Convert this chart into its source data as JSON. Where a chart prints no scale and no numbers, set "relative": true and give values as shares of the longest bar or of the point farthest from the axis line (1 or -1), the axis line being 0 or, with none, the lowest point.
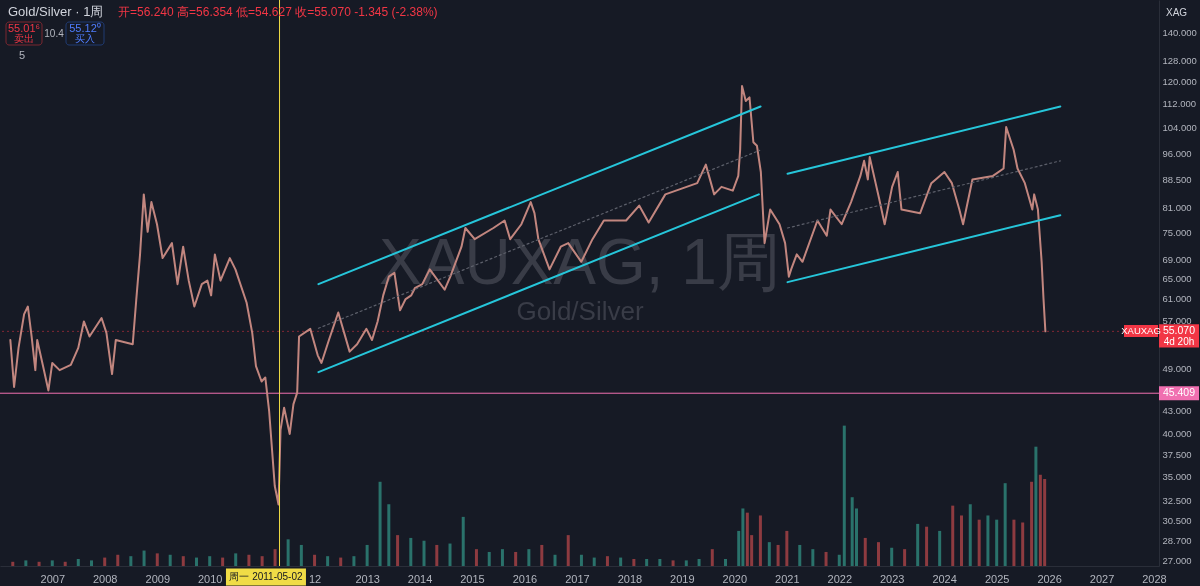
{
  "chart_data": [
    {
      "type": "line",
      "title": "Gold/Silver · 1周",
      "annotations": [
        "开=56.240 高=56.354 低=54.627 收=55.070 -1.345 (-2.38%)",
        "55.01⁶",
        "卖出",
        "10.4",
        "55.12⁰",
        "买入",
        "5",
        "XAUXAG, 1周",
        "Gold/Silver",
        "XAG",
        "XAUXAG",
        "4d 20h"
      ],
      "log": "y",
      "grid": false,
      "xlim": [
        "2006-01-02",
        "2028-02-05"
      ],
      "xticks": [
        "2007",
        "2008",
        "2009",
        "2010",
        {
          "value": "2012",
          "label": "12"
        },
        "2013",
        "2014",
        "2015",
        "2016",
        "2017",
        "2018",
        "2019",
        "2020",
        "2021",
        "2022",
        "2023",
        "2024",
        "2025",
        "2026",
        "2027",
        "2028"
      ],
      "ylim": [
        26.5,
        154.7
      ],
      "yticks": [
        {
          "value": 140,
          "label": "140.000"
        },
        {
          "value": 128,
          "label": "128.000"
        },
        {
          "value": 120,
          "label": "120.000"
        },
        {
          "value": 112,
          "label": "112.000"
        },
        {
          "value": 104,
          "label": "104.000"
        },
        {
          "value": 96,
          "label": "96.000"
        },
        {
          "value": 88.5,
          "label": "88.500"
        },
        {
          "value": 81,
          "label": "81.000"
        },
        {
          "value": 75,
          "label": "75.000"
        },
        {
          "value": 69,
          "label": "69.000"
        },
        {
          "value": 65,
          "label": "65.000"
        },
        {
          "value": 61,
          "label": "61.000"
        },
        {
          "value": 57,
          "label": "57.000"
        },
        {
          "value": 49,
          "label": "49.000"
        },
        {
          "value": 43,
          "label": "43.000"
        },
        {
          "value": 40,
          "label": "40.000"
        },
        {
          "value": 37.5,
          "label": "37.500"
        },
        {
          "value": 35,
          "label": "35.000"
        },
        {
          "value": 32.5,
          "label": "32.500"
        },
        {
          "value": 30.5,
          "label": "30.500"
        },
        {
          "value": 28.7,
          "label": "28.700"
        },
        {
          "value": 27,
          "label": "27.000"
        }
      ],
      "ref_lines": [
        {
          "axis": "y",
          "value": 45.409,
          "label": "45.409",
          "color": "#f06fb0"
        },
        {
          "axis": "y",
          "value": 55.07,
          "label": "55.070",
          "color": "#f23645",
          "line_style": "dotted"
        },
        {
          "axis": "x",
          "value": "2011-05-02",
          "label": "周一 2011-05-02",
          "color": "#f0dc46"
        }
      ],
      "series": [
        {
          "color": "#c2867f",
          "line_style": "solid",
          "x": [
            "2006-03-15",
            "2006-04-10",
            "2006-05-11",
            "2006-06-19",
            "2006-07-15",
            "2006-08-10",
            "2006-09-05",
            "2006-09-18",
            "2006-10-27",
            "2006-12-05",
            "2007-01-01",
            "2007-02-21",
            "2007-05-10",
            "2007-07-01",
            "2007-08-09",
            "2007-09-17",
            "2007-12-10",
            "2008-01-13",
            "2008-02-21",
            "2008-03-18",
            "2008-07-14",
            "2008-08-08",
            "2008-09-03",
            "2008-09-29",
            "2008-10-26",
            "2008-11-21",
            "2008-12-30",
            "2009-02-07",
            "2009-04-13",
            "2009-05-22",
            "2009-06-30",
            "2009-08-08",
            "2009-09-16",
            "2009-11-07",
            "2009-12-16",
            "2010-01-11",
            "2010-02-06",
            "2010-03-17",
            "2010-05-21",
            "2010-06-29",
            "2010-09-15",
            "2010-10-24",
            "2010-11-19",
            "2010-12-28",
            "2011-01-23",
            "2011-02-19",
            "2011-03-30",
            "2011-04-25",
            "2011-05-09",
            "2011-06-03",
            "2011-07-12",
            "2011-08-07",
            "2011-09-02",
            "2011-09-15",
            "2011-12-02",
            "2012-01-23",
            "2012-02-18",
            "2012-04-10",
            "2012-06-14",
            "2012-09-01",
            "2012-10-23",
            "2012-12-27",
            "2013-02-04",
            "2013-03-15",
            "2013-04-23",
            "2013-06-01",
            "2013-07-10",
            "2013-08-18",
            "2013-09-26",
            "2013-11-04",
            "2013-11-29",
            "2014-01-20",
            "2014-03-13",
            "2014-06-25",
            "2014-08-03",
            "2014-10-20",
            "2014-11-16",
            "2015-01-20",
            "2015-05-30",
            "2015-08-16",
            "2015-09-24",
            "2015-12-11",
            "2016-02-14",
            "2016-03-11",
            "2016-04-07",
            "2016-06-24",
            "2016-09-10",
            "2016-11-01",
            "2017-01-31",
            "2017-04-19",
            "2017-07-07",
            "2017-12-09",
            "2018-03-10",
            "2018-05-15",
            "2018-09-08",
            "2019-04-18",
            "2019-06-17",
            "2019-08-14",
            "2019-10-04",
            "2019-12-22",
            "2020-01-29",
            "2020-02-11",
            "2020-02-24",
            "2020-03-21",
            "2020-04-16",
            "2020-05-13",
            "2020-06-07",
            "2020-07-04",
            "2020-07-30",
            "2020-09-07",
            "2020-11-11",
            "2020-12-20",
            "2021-01-15",
            "2021-01-31",
            "2021-03-11",
            "2021-04-20",
            "2021-08-02",
            "2021-10-06",
            "2021-11-01",
            "2022-01-18",
            "2022-03-24",
            "2022-05-28",
            "2022-06-23",
            "2022-07-19",
            "2022-08-01",
            "2022-10-05",
            "2022-11-13",
            "2023-01-04",
            "2023-02-12",
            "2023-03-10",
            "2023-07-18",
            "2023-10-04",
            "2024-01-03",
            "2024-02-24",
            "2024-04-16",
            "2024-05-12",
            "2024-07-16",
            "2024-12-06",
            "2025-02-18",
            "2025-03-08",
            "2025-04-29",
            "2025-05-26",
            "2025-07-16",
            "2025-09-06",
            "2025-09-19",
            "2025-10-15",
            "2025-11-10",
            "2025-11-23",
            "2025-12-06"
          ],
          "values": [
            53.6,
            46.3,
            52.3,
            58.1,
            59.5,
            54.2,
            48.8,
            53.6,
            49.6,
            45.8,
            49.9,
            48.8,
            49.6,
            52.3,
            56.8,
            54.2,
            57.4,
            54.8,
            48.2,
            53.6,
            52.9,
            60.9,
            70.0,
            84.4,
            75.1,
            82.4,
            76.9,
            69.2,
            72.5,
            63.8,
            71.7,
            64.5,
            59.5,
            63.8,
            64.5,
            61.6,
            70.0,
            64.5,
            69.2,
            66.8,
            60.2,
            54.8,
            49.4,
            47.1,
            47.7,
            42.9,
            34.0,
            32.1,
            40.5,
            43.4,
            40.0,
            43.9,
            45.5,
            54.2,
            55.5,
            51.1,
            49.9,
            53.6,
            58.4,
            51.7,
            52.9,
            55.5,
            53.6,
            56.8,
            61.6,
            65.3,
            66.1,
            58.8,
            60.9,
            61.6,
            63.0,
            63.8,
            66.8,
            62.7,
            65.3,
            71.7,
            76.0,
            73.4,
            76.0,
            77.8,
            73.4,
            76.9,
            82.4,
            79.6,
            73.4,
            66.8,
            71.7,
            72.5,
            68.4,
            73.4,
            77.8,
            77.8,
            81.5,
            77.3,
            84.4,
            87.4,
            92.6,
            84.4,
            86.4,
            85.4,
            89.4,
            97.0,
            118.3,
            112.9,
            114.2,
            99.3,
            98.2,
            90.5,
            72.5,
            80.5,
            76.9,
            72.5,
            65.3,
            66.8,
            70.0,
            68.4,
            77.8,
            74.2,
            80.5,
            76.9,
            82.4,
            89.4,
            93.7,
            88.4,
            94.8,
            83.4,
            76.9,
            86.4,
            90.5,
            80.5,
            79.6,
            87.4,
            90.5,
            87.4,
            80.5,
            76.9,
            88.4,
            89.4,
            91.5,
            104.1,
            97.0,
            91.5,
            87.4,
            80.5,
            84.4,
            80.5,
            68.4,
            60.9,
            55.07
          ]
        },
        {
          "color": "#26c6da",
          "line_style": "solid",
          "x": [
            "2012-01-28",
            "2020-07-02"
          ],
          "values": [
            63.8,
            111.0
          ]
        },
        {
          "color": "#5d606b",
          "line_style": "dotted",
          "x": [
            "2012-01-28",
            "2020-06-26"
          ],
          "values": [
            55.6,
            96.8
          ]
        },
        {
          "color": "#26c6da",
          "line_style": "solid",
          "x": [
            "2012-01-28",
            "2020-06-20"
          ],
          "values": [
            48.5,
            84.4
          ]
        },
        {
          "color": "#26c6da",
          "line_style": "solid",
          "x": [
            "2021-01-06",
            "2026-03-20"
          ],
          "values": [
            90.0,
            111.0
          ]
        },
        {
          "color": "#5d606b",
          "line_style": "dotted",
          "x": [
            "2021-01-06",
            "2026-03-20"
          ],
          "values": [
            76.0,
            93.7
          ]
        },
        {
          "color": "#26c6da",
          "line_style": "solid",
          "x": [
            "2021-01-06",
            "2026-03-20"
          ],
          "values": [
            64.2,
            79.1
          ]
        }
      ]
    },
    {
      "type": "bar",
      "relative": true,
      "xlim": [
        "2006-01-02",
        "2028-02-05"
      ],
      "x": [
        "2006-04",
        "2006-07",
        "2006-10",
        "2007-01",
        "2007-04",
        "2007-07",
        "2007-10",
        "2008-01",
        "2008-04",
        "2008-07",
        "2008-10",
        "2009-01",
        "2009-04",
        "2009-07",
        "2009-10",
        "2010-01",
        "2010-04",
        "2010-07",
        "2010-10",
        "2011-01",
        "2011-04",
        "2011-07",
        "2011-10",
        "2012-01",
        "2012-04",
        "2012-07",
        "2012-10",
        "2013-01",
        "2013-04",
        "2013-06",
        "2013-08",
        "2013-11",
        "2014-02",
        "2014-05",
        "2014-08",
        "2014-11",
        "2015-02",
        "2015-05",
        "2015-08",
        "2015-11",
        "2016-02",
        "2016-05",
        "2016-08",
        "2016-11",
        "2017-02",
        "2017-05",
        "2017-08",
        "2017-11",
        "2018-02",
        "2018-05",
        "2018-08",
        "2018-11",
        "2019-02",
        "2019-05",
        "2019-08",
        "2019-11",
        "2020-02",
        "2020-03",
        "2020-04",
        "2020-05",
        "2020-07",
        "2020-09",
        "2020-11",
        "2021-01",
        "2021-04",
        "2021-07",
        "2021-10",
        "2022-01",
        "2022-02-05",
        "2022-04",
        "2022-05",
        "2022-07",
        "2022-10",
        "2023-01",
        "2023-04",
        "2023-07",
        "2023-09",
        "2023-12",
        "2024-03",
        "2024-05",
        "2024-07",
        "2024-09",
        "2024-11",
        "2025-01",
        "2025-03",
        "2025-05",
        "2025-07",
        "2025-09",
        "2025-10",
        "2025-11",
        "2025-12"
      ],
      "values": [
        0.03,
        0.04,
        0.03,
        0.04,
        0.03,
        0.05,
        0.04,
        0.06,
        0.08,
        0.07,
        0.11,
        0.09,
        0.08,
        0.07,
        0.06,
        0.07,
        0.06,
        0.09,
        0.08,
        0.07,
        0.12,
        0.19,
        0.15,
        0.08,
        0.07,
        0.06,
        0.07,
        0.15,
        0.6,
        0.44,
        0.22,
        0.2,
        0.18,
        0.15,
        0.16,
        0.35,
        0.12,
        0.1,
        0.12,
        0.1,
        0.12,
        0.15,
        0.08,
        0.22,
        0.08,
        0.06,
        0.07,
        0.06,
        0.05,
        0.05,
        0.05,
        0.04,
        0.04,
        0.05,
        0.12,
        0.05,
        0.25,
        0.41,
        0.38,
        0.22,
        0.36,
        0.17,
        0.15,
        0.25,
        0.15,
        0.12,
        0.1,
        0.08,
        1.0,
        0.49,
        0.41,
        0.2,
        0.17,
        0.13,
        0.12,
        0.3,
        0.28,
        0.25,
        0.43,
        0.36,
        0.44,
        0.33,
        0.36,
        0.33,
        0.59,
        0.33,
        0.31,
        0.6,
        0.85,
        0.65,
        0.62
      ],
      "colors": [
        "#8e3b40",
        "#2a726b",
        "#8e3b40",
        "#2a726b",
        "#8e3b40",
        "#2a726b",
        "#2a726b",
        "#8e3b40",
        "#8e3b40",
        "#2a726b",
        "#2a726b",
        "#8e3b40",
        "#2a726b",
        "#8e3b40",
        "#2a726b",
        "#2a726b",
        "#8e3b40",
        "#2a726b",
        "#8e3b40",
        "#8e3b40",
        "#8e3b40",
        "#2a726b",
        "#2a726b",
        "#8e3b40",
        "#2a726b",
        "#8e3b40",
        "#2a726b",
        "#2a726b",
        "#2a726b",
        "#2a726b",
        "#8e3b40",
        "#2a726b",
        "#2a726b",
        "#8e3b40",
        "#2a726b",
        "#2a726b",
        "#8e3b40",
        "#2a726b",
        "#2a726b",
        "#8e3b40",
        "#2a726b",
        "#8e3b40",
        "#2a726b",
        "#8e3b40",
        "#2a726b",
        "#2a726b",
        "#8e3b40",
        "#2a726b",
        "#8e3b40",
        "#2a726b",
        "#2a726b",
        "#8e3b40",
        "#2a726b",
        "#2a726b",
        "#8e3b40",
        "#2a726b",
        "#2a726b",
        "#2a726b",
        "#8e3b40",
        "#8e3b40",
        "#8e3b40",
        "#2a726b",
        "#8e3b40",
        "#8e3b40",
        "#2a726b",
        "#2a726b",
        "#8e3b40",
        "#2a726b",
        "#2a726b",
        "#2a726b",
        "#2a726b",
        "#8e3b40",
        "#8e3b40",
        "#2a726b",
        "#8e3b40",
        "#2a726b",
        "#8e3b40",
        "#2a726b",
        "#8e3b40",
        "#8e3b40",
        "#2a726b",
        "#8e3b40",
        "#2a726b",
        "#2a726b",
        "#2a726b",
        "#8e3b40",
        "#8e3b40",
        "#8e3b40",
        "#2a726b",
        "#8e3b40",
        "#8e3b40"
      ]
    }
  ]
}
